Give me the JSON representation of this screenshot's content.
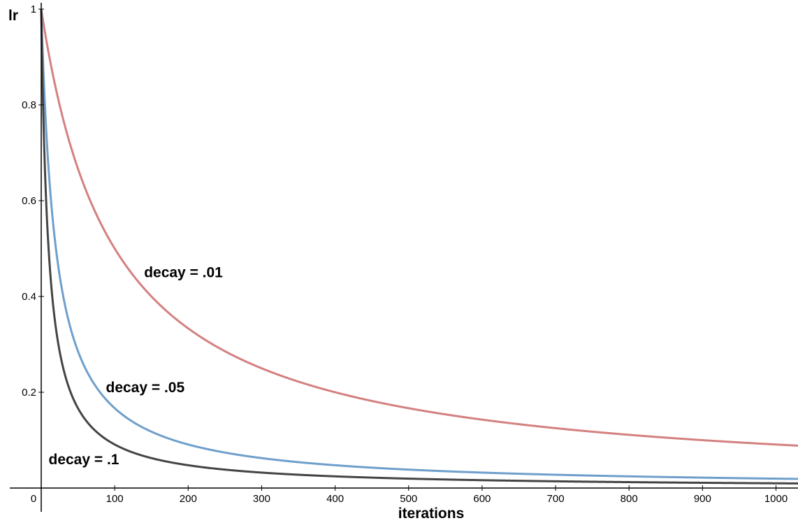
{
  "chart_data": {
    "type": "line",
    "title": "",
    "xlabel": "iterations",
    "ylabel": "lr",
    "xlim": [
      0,
      1030
    ],
    "ylim": [
      0,
      1
    ],
    "grid": false,
    "x_ticks": [
      {
        "value": 0,
        "label": "0"
      },
      {
        "value": 100,
        "label": "100"
      },
      {
        "value": 200,
        "label": "200"
      },
      {
        "value": 300,
        "label": "300"
      },
      {
        "value": 400,
        "label": "400"
      },
      {
        "value": 500,
        "label": "500"
      },
      {
        "value": 600,
        "label": "600"
      },
      {
        "value": 700,
        "label": "700"
      },
      {
        "value": 800,
        "label": "800"
      },
      {
        "value": 900,
        "label": "900"
      },
      {
        "value": 1000,
        "label": "1000"
      }
    ],
    "y_ticks": [
      {
        "value": 0.2,
        "label": "0.2"
      },
      {
        "value": 0.4,
        "label": "0.4"
      },
      {
        "value": 0.6,
        "label": "0.6"
      },
      {
        "value": 0.8,
        "label": "0.8"
      },
      {
        "value": 1,
        "label": "1"
      }
    ],
    "x": [
      0,
      5,
      10,
      20,
      30,
      40,
      50,
      60,
      80,
      100,
      125,
      150,
      200,
      250,
      300,
      400,
      500,
      600,
      700,
      800,
      900,
      1000,
      1030
    ],
    "series": [
      {
        "name": "decay = .01",
        "decay": 0.01,
        "color": "#d48080",
        "values": [
          1.0,
          0.952,
          0.909,
          0.833,
          0.769,
          0.714,
          0.667,
          0.625,
          0.556,
          0.5,
          0.444,
          0.4,
          0.333,
          0.286,
          0.25,
          0.2,
          0.167,
          0.143,
          0.125,
          0.111,
          0.1,
          0.091,
          0.088
        ],
        "label_x": 140,
        "label_y": 0.44
      },
      {
        "name": "decay = .05",
        "decay": 0.05,
        "color": "#6e9fcb",
        "values": [
          1.0,
          0.8,
          0.667,
          0.5,
          0.4,
          0.333,
          0.286,
          0.25,
          0.2,
          0.167,
          0.138,
          0.118,
          0.091,
          0.074,
          0.0625,
          0.0476,
          0.0385,
          0.0323,
          0.0278,
          0.0244,
          0.0217,
          0.0196,
          0.019
        ],
        "label_x": 88,
        "label_y": 0.2
      },
      {
        "name": "decay = .1",
        "decay": 0.1,
        "color": "#444444",
        "values": [
          1.0,
          0.667,
          0.5,
          0.333,
          0.25,
          0.2,
          0.167,
          0.143,
          0.111,
          0.0909,
          0.0741,
          0.0625,
          0.0476,
          0.0385,
          0.0323,
          0.0244,
          0.0196,
          0.0164,
          0.0141,
          0.0123,
          0.011,
          0.0099,
          0.0096
        ],
        "label_x": 10,
        "label_y": 0.05
      }
    ]
  }
}
